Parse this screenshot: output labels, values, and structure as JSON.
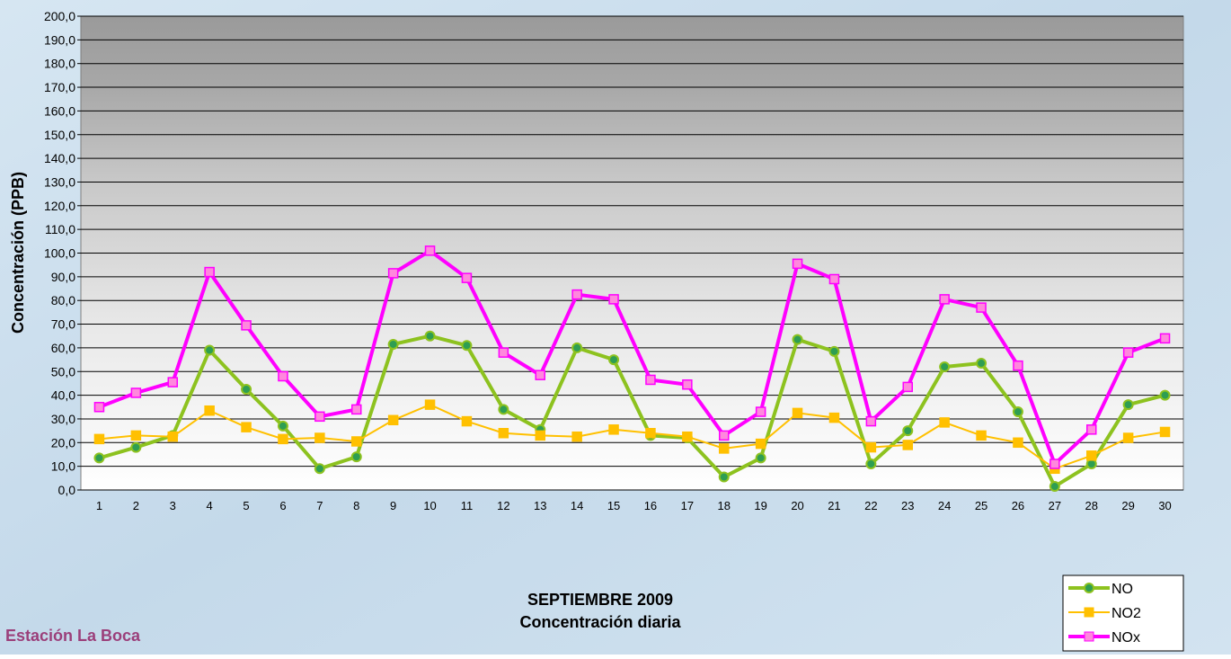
{
  "chart_data": {
    "type": "line",
    "title": "SEPTIEMBRE 2009",
    "subtitle": "Concentración diaria",
    "annotation": "Estación La Boca",
    "y_label": "Concentración  (PPB)",
    "categories": [
      "1",
      "2",
      "3",
      "4",
      "5",
      "6",
      "7",
      "8",
      "9",
      "10",
      "11",
      "12",
      "13",
      "14",
      "15",
      "16",
      "17",
      "18",
      "19",
      "20",
      "21",
      "22",
      "23",
      "24",
      "25",
      "26",
      "27",
      "28",
      "29",
      "30"
    ],
    "series": [
      {
        "name": "NO",
        "color": "#8dc21f",
        "marker": "circle",
        "values": [
          13.5,
          18,
          23,
          59,
          42.5,
          27,
          9,
          14,
          61.5,
          65,
          61,
          34,
          25.5,
          60,
          55,
          23,
          22,
          5.5,
          13.5,
          63.5,
          58.5,
          11,
          25,
          52,
          53.5,
          33,
          1.5,
          11,
          36,
          40
        ]
      },
      {
        "name": "NO2",
        "color": "#ffc000",
        "marker": "square",
        "values": [
          21.5,
          23,
          22.5,
          33.5,
          26.5,
          21.5,
          22,
          20.5,
          29.5,
          36,
          29,
          24,
          23,
          22.5,
          25.5,
          24,
          22.5,
          17.5,
          19.5,
          32.5,
          30.5,
          18,
          19,
          28.5,
          23,
          20,
          9,
          14.5,
          22,
          24.5
        ]
      },
      {
        "name": "NOx",
        "color": "#ff00ff",
        "marker": "square",
        "values": [
          35,
          41,
          45.5,
          92,
          69.5,
          48,
          31,
          34,
          91.5,
          101,
          89.5,
          58,
          48.5,
          82.5,
          80.5,
          46.5,
          44.5,
          23,
          33,
          95.5,
          89,
          29,
          43.5,
          80.5,
          77,
          52.5,
          11,
          25.5,
          58,
          64
        ]
      }
    ],
    "ylim": [
      0,
      200
    ],
    "yticks": [
      {
        "value": 0,
        "label": "0,0"
      },
      {
        "value": 10,
        "label": "10,0"
      },
      {
        "value": 20,
        "label": "20,0"
      },
      {
        "value": 30,
        "label": "30,0"
      },
      {
        "value": 40,
        "label": "40,0"
      },
      {
        "value": 50,
        "label": "50,0"
      },
      {
        "value": 60,
        "label": "60,0"
      },
      {
        "value": 70,
        "label": "70,0"
      },
      {
        "value": 80,
        "label": "80,0"
      },
      {
        "value": 90,
        "label": "90,0"
      },
      {
        "value": 100,
        "label": "100,0"
      },
      {
        "value": 110,
        "label": "110,0"
      },
      {
        "value": 120,
        "label": "120,0"
      },
      {
        "value": 130,
        "label": "130,0"
      },
      {
        "value": 140,
        "label": "140,0"
      },
      {
        "value": 150,
        "label": "150,0"
      },
      {
        "value": 160,
        "label": "160,0"
      },
      {
        "value": 170,
        "label": "170,0"
      },
      {
        "value": 180,
        "label": "180,0"
      },
      {
        "value": 190,
        "label": "190,0"
      },
      {
        "value": 200,
        "label": "200,0"
      }
    ],
    "grid": true,
    "legend": "bottom-right"
  }
}
